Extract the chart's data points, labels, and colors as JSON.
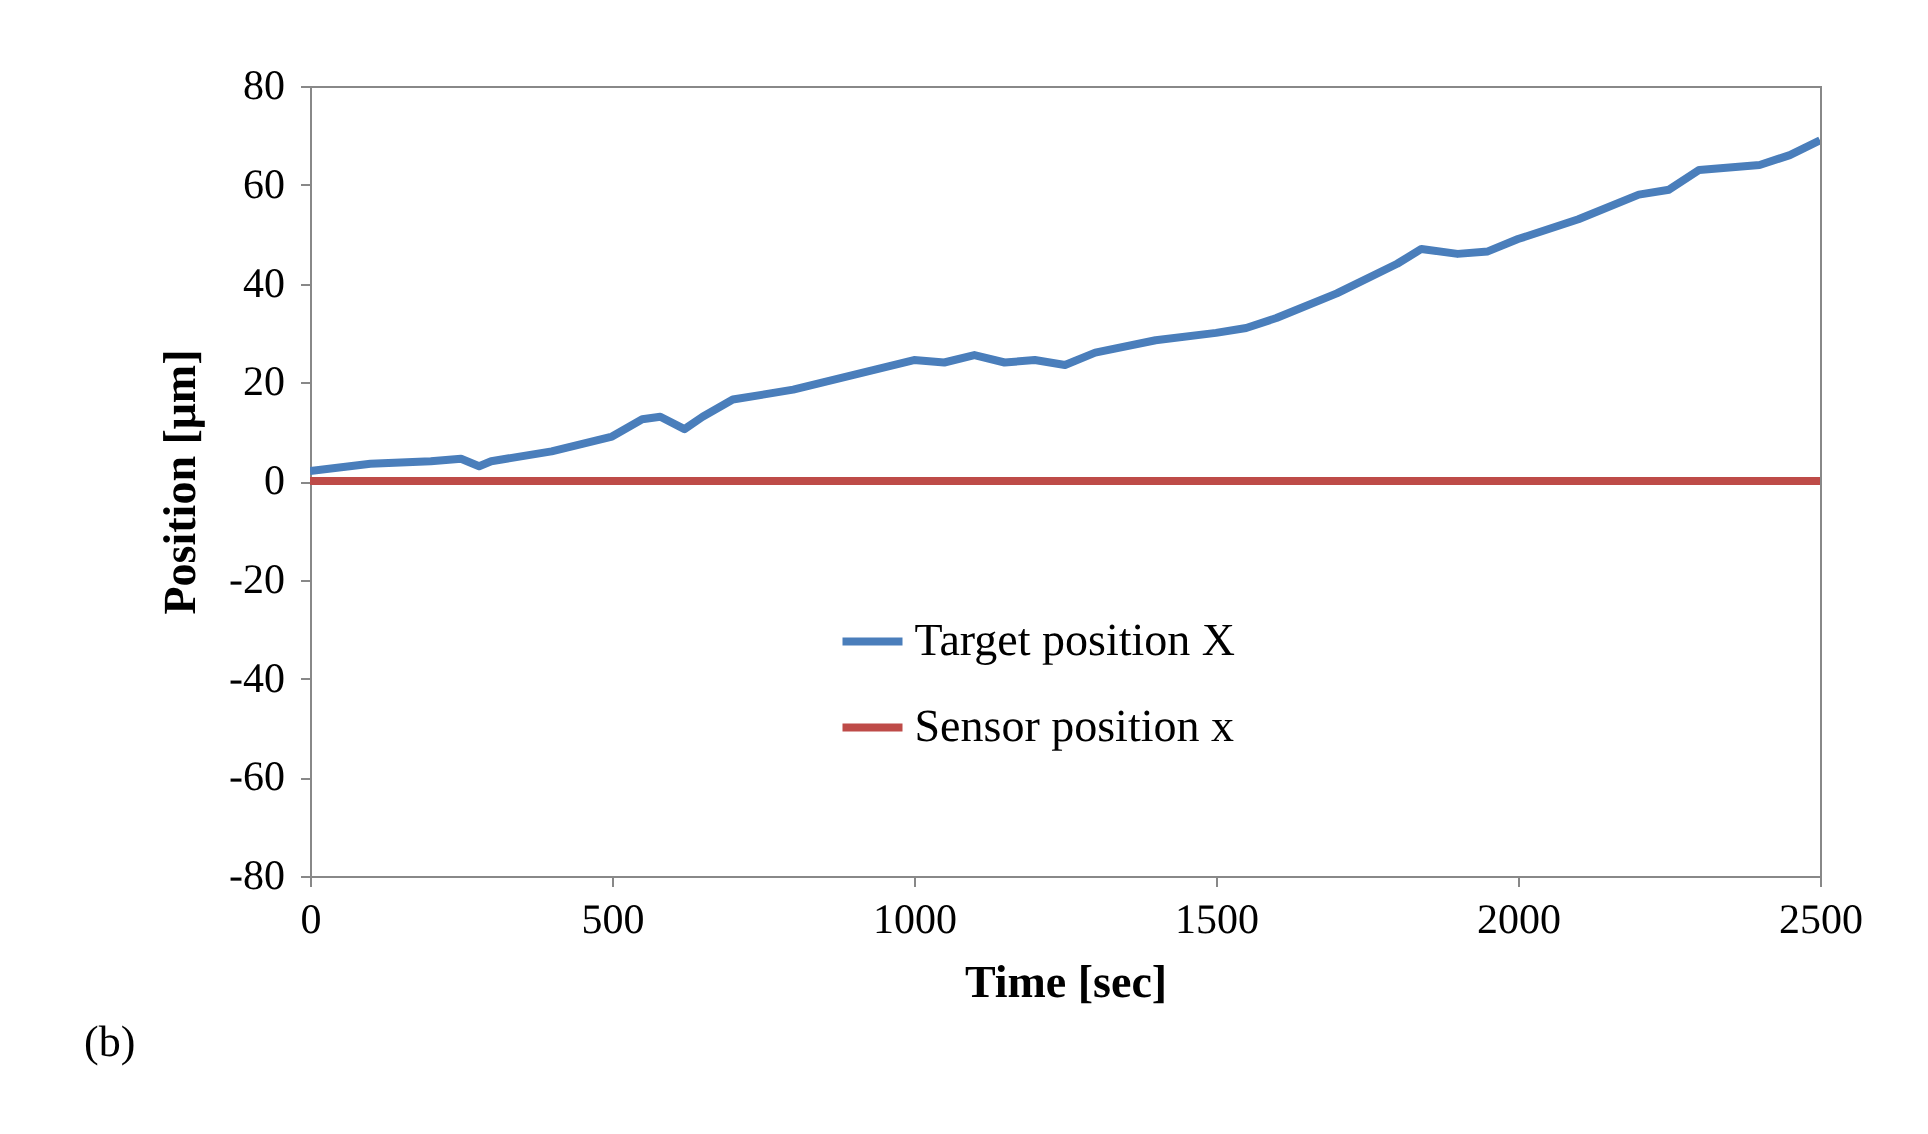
{
  "chart_data": {
    "type": "line",
    "xlabel": "Time  [sec]",
    "ylabel": "Position [μm]",
    "xlim": [
      0,
      2500
    ],
    "xticks": [
      0,
      500,
      1000,
      1500,
      2000,
      2500
    ],
    "ylim": [
      -80,
      80
    ],
    "yticks": [
      -80,
      -60,
      -40,
      -20,
      0,
      20,
      40,
      60,
      80
    ],
    "grid": false,
    "legend": "bottom",
    "annotations": [
      "(b)"
    ],
    "series": [
      {
        "name": "Target position X",
        "color": "#4a7ebb",
        "x": [
          0,
          100,
          200,
          250,
          280,
          300,
          400,
          500,
          550,
          580,
          620,
          650,
          700,
          800,
          900,
          1000,
          1050,
          1100,
          1150,
          1200,
          1250,
          1300,
          1400,
          1500,
          1550,
          1600,
          1700,
          1800,
          1840,
          1900,
          1950,
          2000,
          2100,
          2200,
          2250,
          2300,
          2400,
          2450,
          2500
        ],
        "values": [
          2,
          3.5,
          4,
          4.5,
          3,
          4,
          6,
          9,
          12.5,
          13,
          10.5,
          13,
          16.5,
          18.5,
          21.5,
          24.5,
          24,
          25.5,
          24,
          24.5,
          23.5,
          26,
          28.5,
          30,
          31,
          33,
          38,
          44,
          47,
          46,
          46.5,
          49,
          53,
          58,
          59,
          63,
          64,
          66,
          69
        ]
      },
      {
        "name": "Sensor position x",
        "color": "#be4b48",
        "x": [
          0,
          250,
          500,
          750,
          1000,
          1250,
          1500,
          1750,
          2000,
          2250,
          2500
        ],
        "values": [
          0,
          0,
          0,
          0,
          0,
          0,
          0,
          0,
          0,
          0,
          0
        ]
      }
    ]
  }
}
